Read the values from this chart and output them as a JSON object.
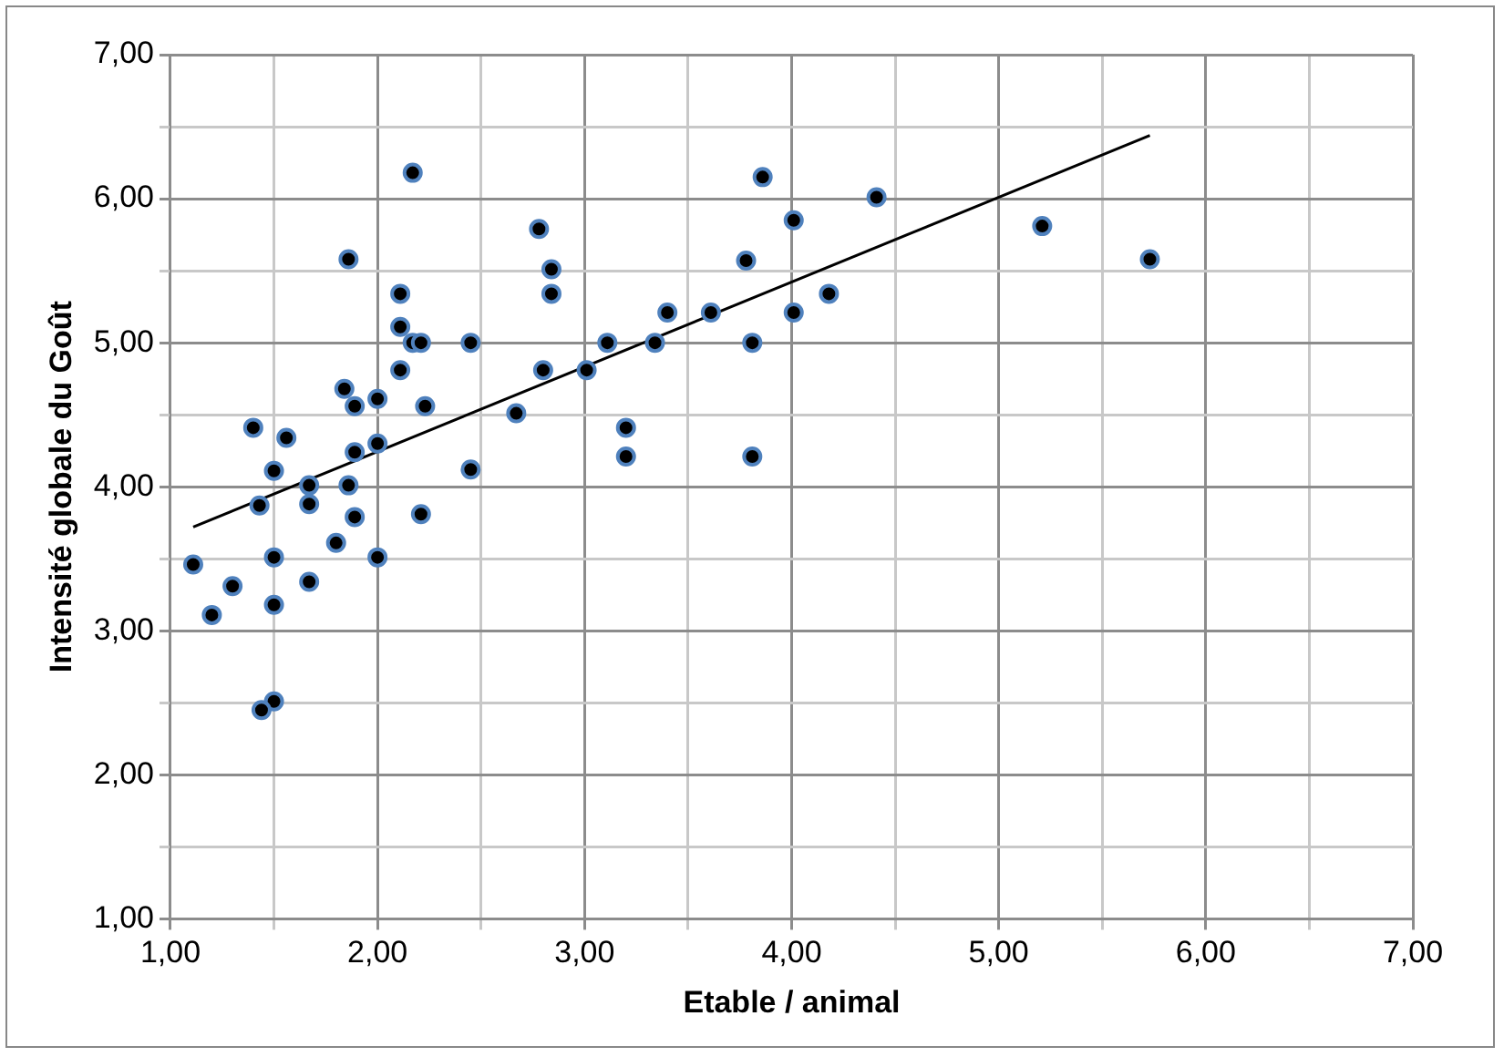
{
  "chart_data": {
    "type": "scatter",
    "xlabel": "Etable / animal",
    "ylabel": "Intensité globale du Goût",
    "xlim": [
      1,
      7
    ],
    "ylim": [
      1,
      7
    ],
    "xticks": [
      {
        "value": 1,
        "label": "1,00"
      },
      {
        "value": 1.5,
        "label": null
      },
      {
        "value": 2,
        "label": "2,00"
      },
      {
        "value": 2.5,
        "label": null
      },
      {
        "value": 3,
        "label": "3,00"
      },
      {
        "value": 3.5,
        "label": null
      },
      {
        "value": 4,
        "label": "4,00"
      },
      {
        "value": 4.5,
        "label": null
      },
      {
        "value": 5,
        "label": "5,00"
      },
      {
        "value": 5.5,
        "label": null
      },
      {
        "value": 6,
        "label": "6,00"
      },
      {
        "value": 6.5,
        "label": null
      },
      {
        "value": 7,
        "label": "7,00"
      }
    ],
    "yticks": [
      {
        "value": 1,
        "label": "1,00"
      },
      {
        "value": 1.5,
        "label": null
      },
      {
        "value": 2,
        "label": "2,00"
      },
      {
        "value": 2.5,
        "label": null
      },
      {
        "value": 3,
        "label": "3,00"
      },
      {
        "value": 3.5,
        "label": null
      },
      {
        "value": 4,
        "label": "4,00"
      },
      {
        "value": 4.5,
        "label": null
      },
      {
        "value": 5,
        "label": "5,00"
      },
      {
        "value": 5.5,
        "label": null
      },
      {
        "value": 6,
        "label": "6,00"
      },
      {
        "value": 6.5,
        "label": null
      },
      {
        "value": 7,
        "label": "7,00"
      }
    ],
    "grid": true,
    "legend": false,
    "series": [
      {
        "marker": "circle",
        "color": "#000000",
        "x": [
          2.17,
          1.86,
          2.11,
          2.11,
          2.17,
          2.21,
          2.45,
          2.11,
          1.84,
          1.89,
          2.0,
          2.23,
          1.4,
          1.56,
          1.89,
          2.0,
          2.45,
          1.5,
          1.67,
          1.86,
          1.43,
          1.67,
          1.89,
          2.21,
          1.8,
          1.11,
          1.5,
          2.0,
          1.3,
          1.67,
          1.2,
          1.5,
          1.5,
          1.44,
          3.86,
          4.41,
          4.01,
          2.78,
          3.78,
          2.84,
          2.84,
          4.18,
          3.4,
          3.61,
          4.01,
          3.11,
          3.34,
          3.81,
          2.8,
          3.01,
          2.67,
          3.2,
          3.2,
          3.81,
          5.21,
          5.73
        ],
        "values": [
          6.18,
          5.58,
          5.34,
          5.11,
          5.0,
          5.0,
          5.0,
          4.81,
          4.68,
          4.56,
          4.61,
          4.56,
          4.41,
          4.34,
          4.24,
          4.3,
          4.12,
          4.11,
          4.01,
          4.01,
          3.87,
          3.88,
          3.79,
          3.81,
          3.61,
          3.46,
          3.51,
          3.51,
          3.31,
          3.34,
          3.11,
          3.18,
          2.51,
          2.45,
          6.15,
          6.01,
          5.85,
          5.79,
          5.57,
          5.51,
          5.34,
          5.34,
          5.21,
          5.21,
          5.21,
          5.0,
          5.0,
          5.0,
          4.81,
          4.81,
          4.51,
          4.41,
          4.21,
          4.21,
          5.81,
          5.58
        ]
      },
      {
        "type": "line",
        "marker": "none",
        "color": "#000000",
        "x": [
          1.11,
          5.73
        ],
        "values": [
          3.72,
          6.44
        ]
      }
    ]
  }
}
